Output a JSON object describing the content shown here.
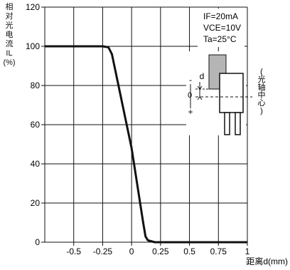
{
  "chart_data": {
    "type": "line",
    "title": "",
    "ylabel_lines": [
      "相",
      "对",
      "光",
      "电",
      "流",
      "IL",
      "(%)"
    ],
    "xlabel": "距离d(mm)",
    "xlim": [
      -0.75,
      1.0
    ],
    "ylim": [
      0,
      120
    ],
    "x_ticks": [
      -0.5,
      -0.25,
      0,
      0.25,
      0.5,
      0.75,
      1
    ],
    "x_tick_labels": [
      "-0.5",
      "-0.25",
      "0",
      "0.25",
      "0.5",
      "0.75",
      "1"
    ],
    "y_ticks": [
      0,
      20,
      40,
      60,
      80,
      100,
      120
    ],
    "y_tick_labels": [
      "0",
      "20",
      "40",
      "60",
      "80",
      "100",
      "120"
    ],
    "grid": true,
    "series": [
      {
        "x": [
          -0.75,
          -0.25,
          -0.2,
          -0.17,
          0.0,
          0.1,
          0.12,
          0.14,
          0.2,
          0.5,
          1.0
        ],
        "y": [
          100,
          100,
          99.5,
          96,
          48,
          10,
          3,
          1,
          0,
          0,
          0
        ]
      }
    ],
    "conditions": [
      "IF=20mA",
      "VCE=10V",
      "Ta=25°C"
    ],
    "inset": {
      "d_label": "d",
      "zero_label": "0",
      "minus_label": "-",
      "plus_label": "+",
      "axis_label": "(光轴中心)"
    },
    "colors": {
      "curve": "#111111",
      "grid": "#111111",
      "emitter": "#b5b5b5"
    }
  }
}
